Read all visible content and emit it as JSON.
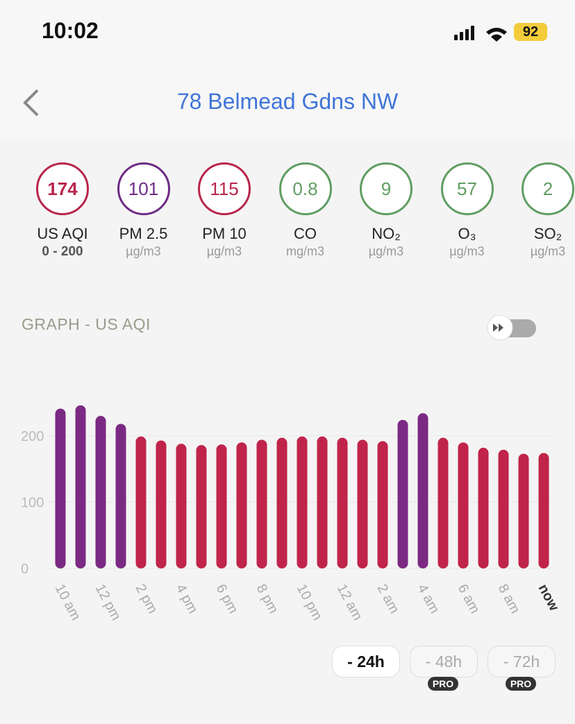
{
  "status": {
    "time": "10:02",
    "battery": "92"
  },
  "header": {
    "title": "78 Belmead Gdns NW"
  },
  "pollutants": [
    {
      "value": "174",
      "name": "US AQI",
      "unit": "0 - 200",
      "color": "#b8254a"
    },
    {
      "value": "101",
      "name": "PM 2.5",
      "unit": "µg/m3",
      "color": "#6e2a84"
    },
    {
      "value": "115",
      "name": "PM 10",
      "unit": "µg/m3",
      "color": "#b8254a"
    },
    {
      "value": "0.8",
      "name": "CO",
      "unit": "mg/m3",
      "color": "#5f9e62"
    },
    {
      "value": "9",
      "name": "NO₂",
      "unit": "µg/m3",
      "color": "#5f9e62"
    },
    {
      "value": "57",
      "name": "O₃",
      "unit": "µg/m3",
      "color": "#5f9e62"
    },
    {
      "value": "2",
      "name": "SO₂",
      "unit": "µg/m3",
      "color": "#5f9e62"
    }
  ],
  "section_title": "GRAPH - US AQI",
  "chart_data": {
    "type": "bar",
    "categories": [
      "10 am",
      null,
      "12 pm",
      null,
      "2 pm",
      null,
      "4 pm",
      null,
      "6 pm",
      null,
      "8 pm",
      null,
      "10 pm",
      null,
      "12 am",
      null,
      "2 am",
      null,
      "4 am",
      null,
      "6 am",
      null,
      "8 am",
      null,
      "now"
    ],
    "values": [
      241,
      246,
      230,
      218,
      199,
      193,
      188,
      186,
      187,
      190,
      194,
      197,
      199,
      199,
      197,
      194,
      192,
      224,
      234,
      197,
      190,
      182,
      179,
      173,
      174
    ],
    "colors": [
      "#7b2a83",
      "#7b2a83",
      "#7b2a83",
      "#7b2a83",
      "#c0244a",
      "#c0244a",
      "#c0244a",
      "#c0244a",
      "#c0244a",
      "#c0244a",
      "#c0244a",
      "#c0244a",
      "#c0244a",
      "#c0244a",
      "#c0244a",
      "#c0244a",
      "#c0244a",
      "#7b2a83",
      "#7b2a83",
      "#c0244a",
      "#c0244a",
      "#c0244a",
      "#c0244a",
      "#c0244a",
      "#c0244a"
    ],
    "ylim": [
      0,
      250
    ],
    "yticks": [
      0,
      100,
      200
    ],
    "grid": true
  },
  "ranges": [
    {
      "label": "- 24h",
      "badge": null
    },
    {
      "label": "- 48h",
      "badge": "PRO"
    },
    {
      "label": "- 72h",
      "badge": "PRO"
    }
  ]
}
